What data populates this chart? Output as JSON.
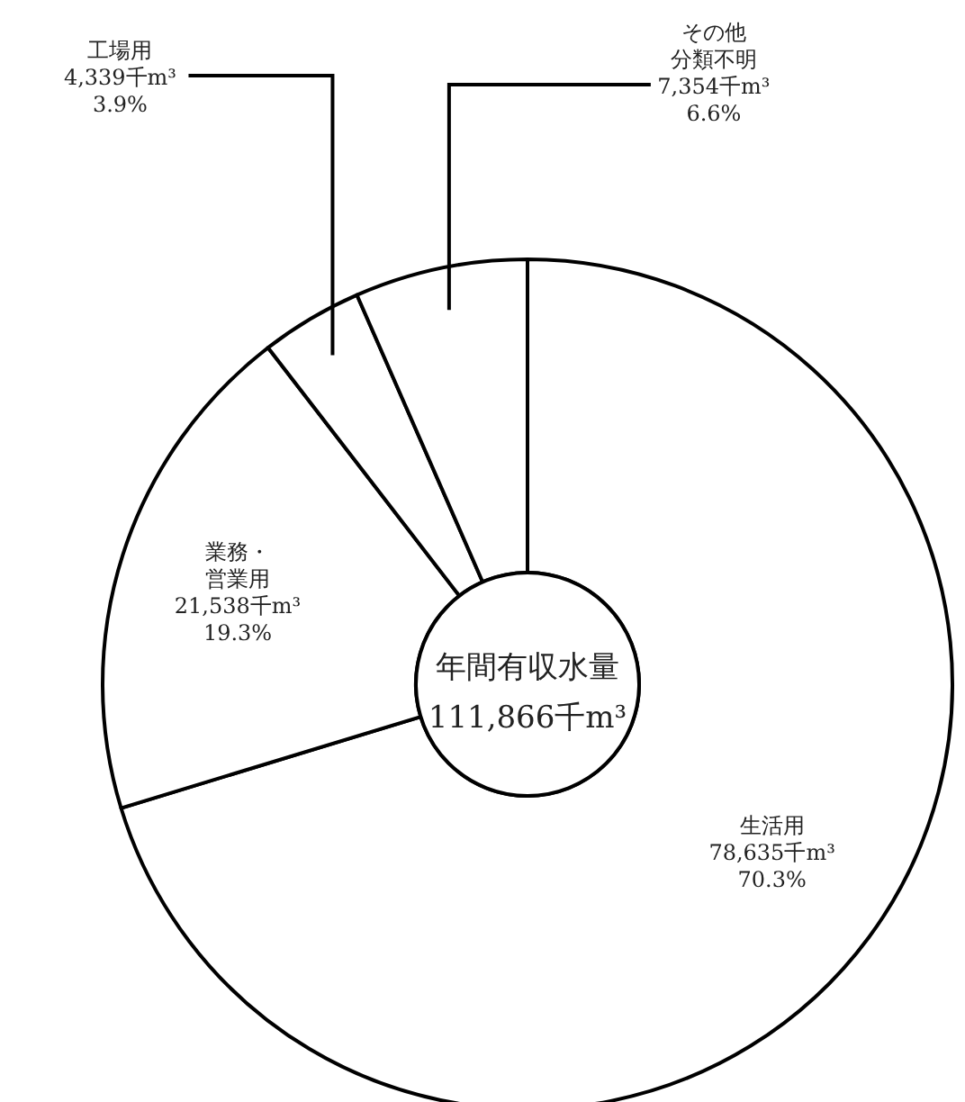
{
  "chart_data": {
    "type": "donut",
    "categories": [
      "生活用",
      "業務・営業用",
      "工場用",
      "その他分類不明"
    ],
    "values": [
      78635,
      21538,
      4339,
      7354
    ],
    "colors": [
      "#ffffff",
      "#ffffff",
      "#ffffff",
      "#ffffff"
    ],
    "value_labels": [
      "78,635千m³ 70.3%",
      "21,538千m³ 19.3%",
      "4,339千m³ 3.9%",
      "7,354千m³ 6.6%"
    ],
    "annotations": [
      "年間有収水量",
      "111,866千m³"
    ]
  }
}
